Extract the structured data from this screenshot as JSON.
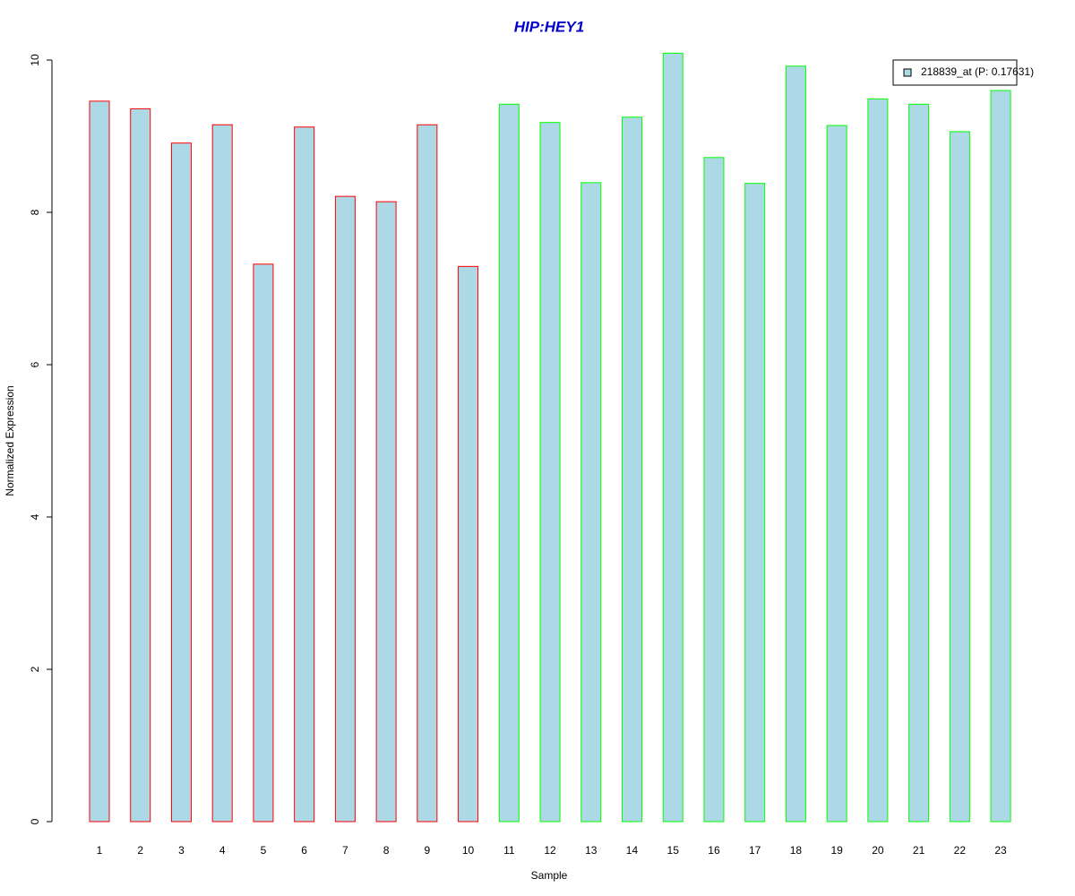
{
  "chart_data": {
    "type": "bar",
    "title": "HIP:HEY1",
    "x_label": "Sample",
    "y_label": "Normalized Expression",
    "categories": [
      "1",
      "2",
      "3",
      "4",
      "5",
      "6",
      "7",
      "8",
      "9",
      "10",
      "11",
      "12",
      "13",
      "14",
      "15",
      "16",
      "17",
      "18",
      "19",
      "20",
      "21",
      "22",
      "23"
    ],
    "series": [
      {
        "name": "218839_at (P: 0.17631)",
        "color": "#add8e6",
        "values": [
          9.46,
          9.36,
          8.91,
          9.15,
          7.32,
          9.12,
          8.21,
          8.14,
          9.15,
          7.29,
          9.42,
          9.18,
          8.39,
          9.25,
          10.09,
          8.72,
          8.38,
          9.92,
          9.14,
          9.49,
          9.42,
          9.06,
          9.6
        ],
        "border_colors": [
          "#ff0000",
          "#ff0000",
          "#ff0000",
          "#ff0000",
          "#ff0000",
          "#ff0000",
          "#ff0000",
          "#ff0000",
          "#ff0000",
          "#ff0000",
          "#00ff00",
          "#00ff00",
          "#00ff00",
          "#00ff00",
          "#00ff00",
          "#00ff00",
          "#00ff00",
          "#00ff00",
          "#00ff00",
          "#00ff00",
          "#00ff00",
          "#00ff00",
          "#00ff00"
        ]
      }
    ],
    "ylim": [
      0,
      10
    ],
    "yticks": [
      0,
      2,
      4,
      6,
      8,
      10
    ],
    "grid": false,
    "legend": "top-right"
  }
}
